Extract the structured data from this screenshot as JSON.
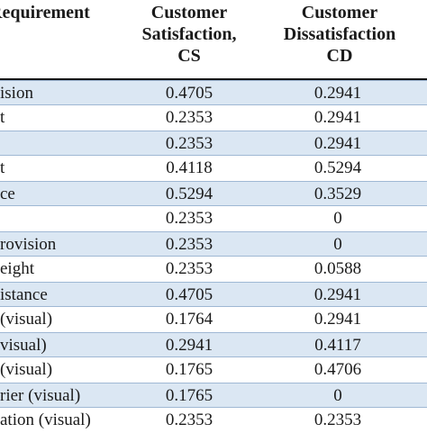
{
  "header": {
    "col1": [
      "Requirement"
    ],
    "col2": [
      "Customer",
      "Satisfaction,",
      "CS"
    ],
    "col3": [
      "Customer",
      "Dissatisfaction",
      "CD"
    ]
  },
  "rows": [
    {
      "req": "ision",
      "cs": "0.4705",
      "cd": "0.2941",
      "shaded": true
    },
    {
      "req": "t",
      "cs": "0.2353",
      "cd": "0.2941",
      "shaded": false
    },
    {
      "req": "",
      "cs": "0.2353",
      "cd": "0.2941",
      "shaded": true
    },
    {
      "req": "t",
      "cs": "0.4118",
      "cd": "0.5294",
      "shaded": false
    },
    {
      "req": "ce",
      "cs": "0.5294",
      "cd": "0.3529",
      "shaded": true
    },
    {
      "req": "",
      "cs": "0.2353",
      "cd": "0",
      "shaded": false
    },
    {
      "req": "rovision",
      "cs": "0.2353",
      "cd": "0",
      "shaded": true
    },
    {
      "req": "eight",
      "cs": "0.2353",
      "cd": "0.0588",
      "shaded": false
    },
    {
      "req": "istance",
      "cs": "0.4705",
      "cd": "0.2941",
      "shaded": true
    },
    {
      "req": "(visual)",
      "cs": "0.1764",
      "cd": "0.2941",
      "shaded": false
    },
    {
      "req": "visual)",
      "cs": "0.2941",
      "cd": "0.4117",
      "shaded": true
    },
    {
      "req": "(visual)",
      "cs": "0.1765",
      "cd": "0.4706",
      "shaded": false
    },
    {
      "req": "rier (visual)",
      "cs": "0.1765",
      "cd": "0",
      "shaded": true
    },
    {
      "req": "ation (visual)",
      "cs": "0.2353",
      "cd": "0.2353",
      "shaded": false
    }
  ]
}
